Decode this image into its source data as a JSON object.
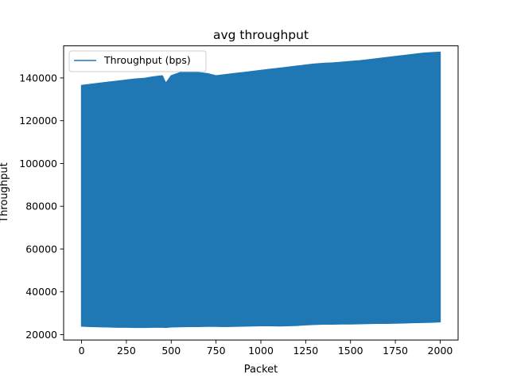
{
  "chart_data": {
    "type": "area",
    "title": "avg throughput",
    "xlabel": "Packet",
    "ylabel": "Throughput",
    "xlim": [
      -100,
      2100
    ],
    "ylim": [
      17500,
      155000
    ],
    "xticks": [
      0,
      250,
      500,
      750,
      1000,
      1250,
      1500,
      1750,
      2000
    ],
    "yticks": [
      20000,
      40000,
      60000,
      80000,
      100000,
      120000,
      140000
    ],
    "legend_position": "top-left",
    "grid": false,
    "series": [
      {
        "name": "Throughput (bps)",
        "color": "#1f77b4",
        "x": [
          0,
          50,
          100,
          150,
          200,
          250,
          300,
          350,
          400,
          450,
          470,
          500,
          550,
          600,
          650,
          700,
          750,
          800,
          850,
          900,
          950,
          1000,
          1050,
          1100,
          1150,
          1200,
          1250,
          1300,
          1350,
          1400,
          1450,
          1500,
          1550,
          1600,
          1650,
          1700,
          1750,
          1800,
          1850,
          1900,
          1950,
          2000
        ],
        "upper": [
          136500,
          137000,
          137500,
          138000,
          138500,
          139000,
          139500,
          139800,
          140500,
          141000,
          137500,
          141000,
          142500,
          143000,
          142500,
          142000,
          141000,
          141500,
          142000,
          142500,
          143000,
          143500,
          144000,
          144500,
          145000,
          145500,
          146000,
          146500,
          146800,
          147000,
          147300,
          147700,
          148000,
          148500,
          149000,
          149500,
          150000,
          150500,
          151000,
          151500,
          151800,
          152000
        ],
        "lower": [
          24000,
          23800,
          23700,
          23600,
          23500,
          23500,
          23400,
          23400,
          23500,
          23500,
          23400,
          23600,
          23700,
          23800,
          23800,
          23900,
          23900,
          23800,
          23900,
          24000,
          24100,
          24200,
          24200,
          24100,
          24200,
          24300,
          24600,
          24800,
          24900,
          24900,
          25000,
          25000,
          25100,
          25200,
          25300,
          25300,
          25400,
          25500,
          25600,
          25700,
          25800,
          26000
        ]
      }
    ]
  }
}
